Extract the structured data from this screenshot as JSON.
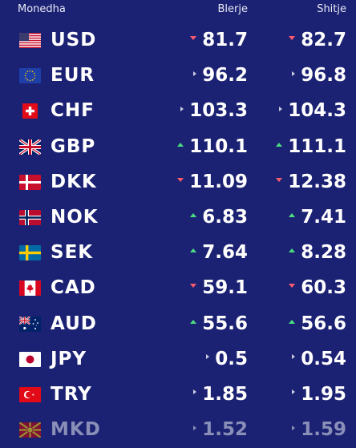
{
  "header": {
    "currency": "Monedha",
    "buy": "Blerje",
    "sell": "Shitje"
  },
  "colors": {
    "background": "#1c2273",
    "down": "#ff5a6e",
    "up": "#4ade80",
    "same": "#c9ccdf"
  },
  "rates": [
    {
      "code": "USD",
      "flag": "us-flag-icon",
      "buy": "81.7",
      "buy_trend": "down",
      "sell": "82.7",
      "sell_trend": "down"
    },
    {
      "code": "EUR",
      "flag": "eu-flag-icon",
      "buy": "96.2",
      "buy_trend": "same",
      "sell": "96.8",
      "sell_trend": "same"
    },
    {
      "code": "CHF",
      "flag": "ch-flag-icon",
      "buy": "103.3",
      "buy_trend": "same",
      "sell": "104.3",
      "sell_trend": "same"
    },
    {
      "code": "GBP",
      "flag": "gb-flag-icon",
      "buy": "110.1",
      "buy_trend": "up",
      "sell": "111.1",
      "sell_trend": "up"
    },
    {
      "code": "DKK",
      "flag": "dk-flag-icon",
      "buy": "11.09",
      "buy_trend": "down",
      "sell": "12.38",
      "sell_trend": "down"
    },
    {
      "code": "NOK",
      "flag": "no-flag-icon",
      "buy": "6.83",
      "buy_trend": "up",
      "sell": "7.41",
      "sell_trend": "up"
    },
    {
      "code": "SEK",
      "flag": "se-flag-icon",
      "buy": "7.64",
      "buy_trend": "up",
      "sell": "8.28",
      "sell_trend": "up"
    },
    {
      "code": "CAD",
      "flag": "ca-flag-icon",
      "buy": "59.1",
      "buy_trend": "down",
      "sell": "60.3",
      "sell_trend": "down"
    },
    {
      "code": "AUD",
      "flag": "au-flag-icon",
      "buy": "55.6",
      "buy_trend": "up",
      "sell": "56.6",
      "sell_trend": "up"
    },
    {
      "code": "JPY",
      "flag": "jp-flag-icon",
      "buy": "0.5",
      "buy_trend": "same",
      "sell": "0.54",
      "sell_trend": "same"
    },
    {
      "code": "TRY",
      "flag": "tr-flag-icon",
      "buy": "1.85",
      "buy_trend": "same",
      "sell": "1.95",
      "sell_trend": "same"
    },
    {
      "code": "MKD",
      "flag": "mk-flag-icon",
      "buy": "1.52",
      "buy_trend": "same",
      "sell": "1.59",
      "sell_trend": "same"
    }
  ]
}
